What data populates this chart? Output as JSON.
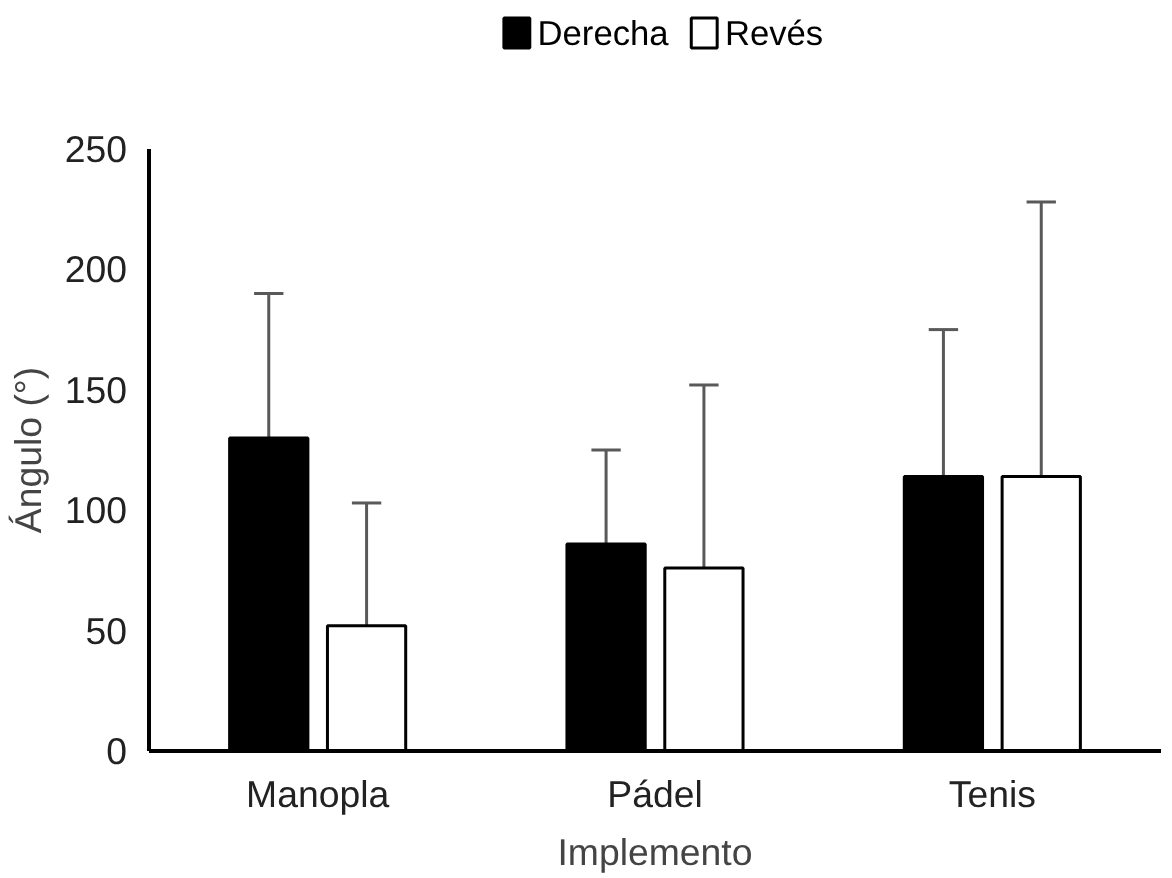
{
  "chart_data": {
    "type": "bar",
    "xlabel": "Implemento",
    "ylabel": "Ángulo (°)",
    "categories": [
      "Manopla",
      "Pádel",
      "Tenis"
    ],
    "series": [
      {
        "name": "Derecha",
        "color": "#000000",
        "values": [
          130,
          86,
          114
        ],
        "errors": [
          [
            130,
            190
          ],
          [
            86,
            125
          ],
          [
            114,
            175
          ]
        ]
      },
      {
        "name": "Revés",
        "color": "#ffffff",
        "values": [
          52,
          76,
          114
        ],
        "errors": [
          [
            52,
            103
          ],
          [
            76,
            152
          ],
          [
            114,
            228
          ]
        ]
      }
    ],
    "ylim": [
      0,
      250
    ],
    "yticks": [
      0,
      50,
      100,
      150,
      200,
      250
    ],
    "grid": false,
    "legend": "top"
  }
}
